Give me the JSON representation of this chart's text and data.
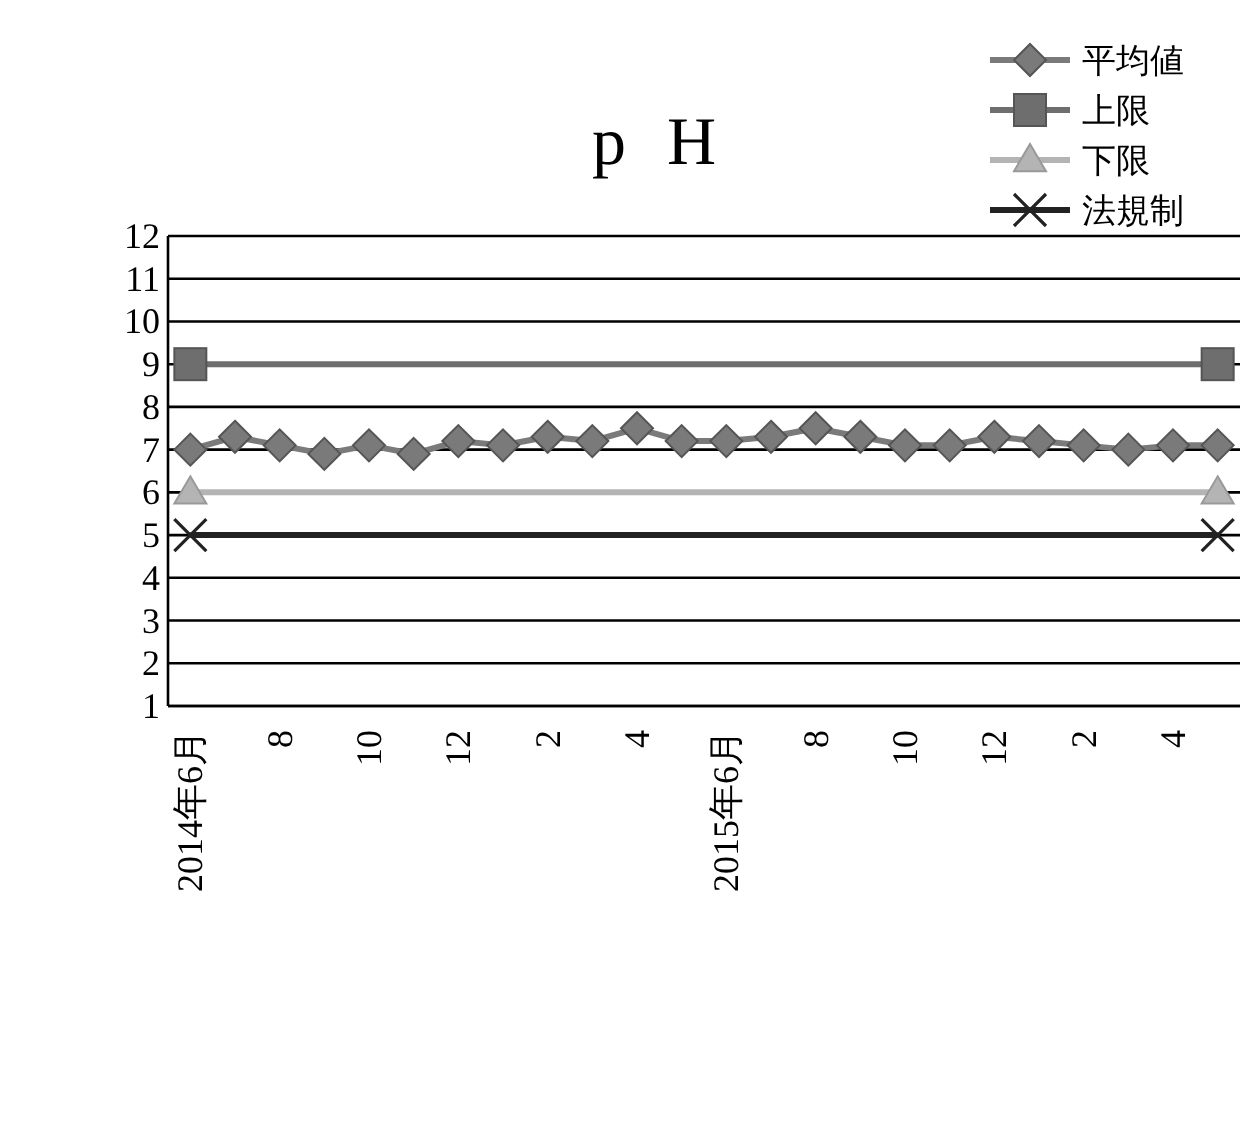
{
  "chart_data": {
    "type": "line",
    "title": "p H",
    "categories": [
      "2014年6月",
      null,
      "8",
      null,
      "10",
      null,
      "12",
      null,
      "2",
      null,
      "4",
      null,
      "2015年6月",
      null,
      "8",
      null,
      "10",
      null,
      "12",
      null,
      "2",
      null,
      "4",
      null
    ],
    "series": [
      {
        "name": "平均値",
        "color": "#7a7a7a",
        "marker": "diamond",
        "values": [
          7.0,
          7.3,
          7.1,
          6.9,
          7.1,
          6.9,
          7.2,
          7.1,
          7.3,
          7.2,
          7.5,
          7.2,
          7.2,
          7.3,
          7.5,
          7.3,
          7.1,
          7.1,
          7.3,
          7.2,
          7.1,
          7.0,
          7.1,
          7.1
        ]
      },
      {
        "name": "上限",
        "color": "#6e6e6e",
        "marker": "square",
        "values": [
          9,
          null,
          null,
          null,
          null,
          null,
          null,
          null,
          null,
          null,
          null,
          null,
          null,
          null,
          null,
          null,
          null,
          null,
          null,
          null,
          null,
          null,
          null,
          9
        ]
      },
      {
        "name": "下限",
        "color": "#b4b4b4",
        "marker": "triangle",
        "values": [
          6,
          null,
          null,
          null,
          null,
          null,
          null,
          null,
          null,
          null,
          null,
          null,
          null,
          null,
          null,
          null,
          null,
          null,
          null,
          null,
          null,
          null,
          null,
          6
        ]
      },
      {
        "name": "法規制",
        "color": "#222222",
        "marker": "cross",
        "values": [
          5,
          null,
          null,
          null,
          null,
          null,
          null,
          null,
          null,
          null,
          null,
          null,
          null,
          null,
          null,
          null,
          null,
          null,
          null,
          null,
          null,
          null,
          null,
          5
        ]
      }
    ],
    "ylim": [
      1,
      12
    ],
    "yticks": [
      1,
      2,
      3,
      4,
      5,
      6,
      7,
      8,
      9,
      10,
      11,
      12
    ],
    "grid": "y",
    "legend": "top right"
  }
}
